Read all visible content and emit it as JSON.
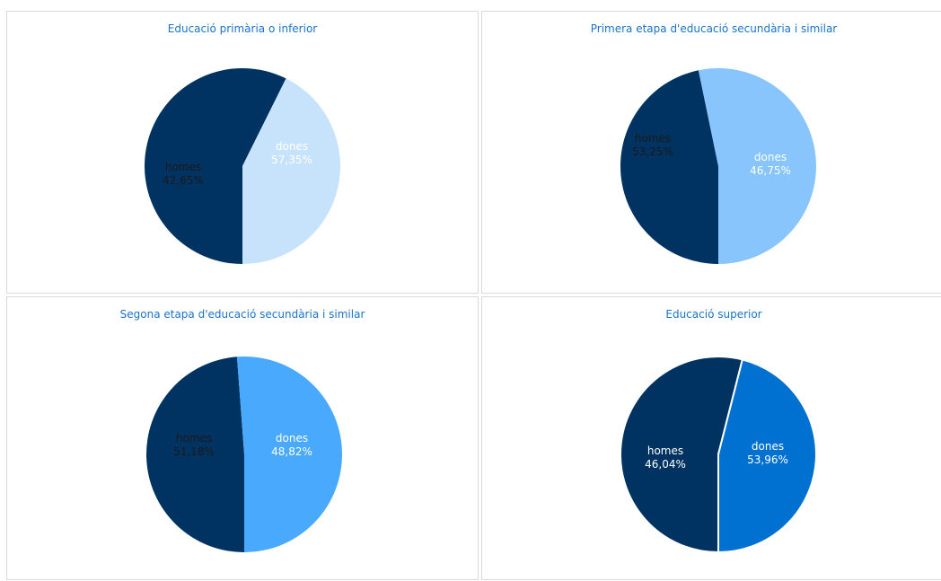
{
  "chart_data": [
    {
      "type": "pie",
      "title": "Educació primària o inferior",
      "slices": [
        {
          "name": "dones",
          "value": 57.35,
          "label": "57,35%",
          "color": "#003361",
          "text_color": "#ffffff"
        },
        {
          "name": "homes",
          "value": 42.65,
          "label": "42,65%",
          "color": "#c6e3fb",
          "text_color": "#1a1a1a"
        }
      ]
    },
    {
      "type": "pie",
      "title": "Primera etapa d'educació secundària i similar",
      "slices": [
        {
          "name": "dones",
          "value": 46.75,
          "label": "46,75%",
          "color": "#003361",
          "text_color": "#ffffff"
        },
        {
          "name": "homes",
          "value": 53.25,
          "label": "53,25%",
          "color": "#87c5fc",
          "text_color": "#1a1a1a"
        }
      ]
    },
    {
      "type": "pie",
      "title": "Segona etapa d'educació secundària i similar",
      "slices": [
        {
          "name": "dones",
          "value": 48.82,
          "label": "48,82%",
          "color": "#003361",
          "text_color": "#ffffff"
        },
        {
          "name": "homes",
          "value": 51.18,
          "label": "51,18%",
          "color": "#48a9fd",
          "text_color": "#1a1a1a"
        }
      ]
    },
    {
      "type": "pie",
      "title": "Educació superior",
      "slices": [
        {
          "name": "dones",
          "value": 53.96,
          "label": "53,96%",
          "color": "#003361",
          "text_color": "#ffffff"
        },
        {
          "name": "homes",
          "value": 46.04,
          "label": "46,04%",
          "color": "#0070d1",
          "text_color": "#ffffff"
        }
      ]
    }
  ]
}
